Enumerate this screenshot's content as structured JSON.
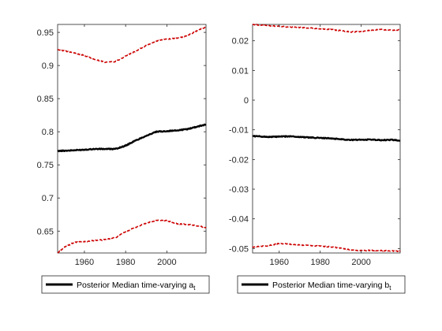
{
  "colors": {
    "median": "#000000",
    "bands": "#cc0000",
    "axis": "#262626",
    "background": "#ffffff"
  },
  "chart_data": [
    {
      "type": "line",
      "xlim": [
        1947,
        2019
      ],
      "ylim": [
        0.617,
        0.962
      ],
      "xticks": [
        1960,
        1980,
        2000
      ],
      "xtick_labels": [
        "1960",
        "1980",
        "2000"
      ],
      "yticks": [
        0.65,
        0.7,
        0.75,
        0.8,
        0.85,
        0.9,
        0.95
      ],
      "ytick_labels": [
        "0.65",
        "0.7",
        "0.75",
        "0.8",
        "0.85",
        "0.9",
        "0.95"
      ],
      "grid": false,
      "legend_position": "bottom",
      "legend": {
        "main": "Posterior Median time-varying a",
        "sub": "t"
      },
      "series": [
        {
          "style": "solid",
          "x": [
            1947,
            1955,
            1965,
            1975,
            1980,
            1985,
            1990,
            1995,
            2000,
            2005,
            2010,
            2015,
            2019
          ],
          "y": [
            0.771,
            0.772,
            0.774,
            0.774,
            0.779,
            0.787,
            0.794,
            0.8,
            0.801,
            0.802,
            0.804,
            0.808,
            0.811
          ]
        },
        {
          "style": "dashed",
          "x": [
            1947,
            1955,
            1960,
            1965,
            1970,
            1975,
            1980,
            1985,
            1990,
            1995,
            2000,
            2005,
            2010,
            2015,
            2019
          ],
          "y": [
            0.924,
            0.919,
            0.915,
            0.909,
            0.905,
            0.906,
            0.914,
            0.922,
            0.93,
            0.937,
            0.94,
            0.941,
            0.945,
            0.953,
            0.958
          ]
        },
        {
          "style": "dashed",
          "x": [
            1947,
            1950,
            1955,
            1960,
            1965,
            1970,
            1975,
            1980,
            1985,
            1990,
            1995,
            2000,
            2005,
            2010,
            2015,
            2019
          ],
          "y": [
            0.617,
            0.625,
            0.633,
            0.634,
            0.636,
            0.637,
            0.64,
            0.649,
            0.656,
            0.662,
            0.666,
            0.666,
            0.661,
            0.66,
            0.658,
            0.655
          ]
        }
      ]
    },
    {
      "type": "line",
      "xlim": [
        1947,
        2019
      ],
      "ylim": [
        -0.0515,
        0.0255
      ],
      "xticks": [
        1960,
        1980,
        2000
      ],
      "xtick_labels": [
        "1960",
        "1980",
        "2000"
      ],
      "yticks": [
        -0.05,
        -0.04,
        -0.03,
        -0.02,
        -0.01,
        0,
        0.01,
        0.02
      ],
      "ytick_labels": [
        "-0.05",
        "-0.04",
        "-0.03",
        "-0.02",
        "-0.01",
        "0",
        "0.01",
        "0.02"
      ],
      "grid": false,
      "legend_position": "bottom",
      "legend": {
        "main": "Posterior Median time-varying b",
        "sub": "t"
      },
      "series": [
        {
          "style": "solid",
          "x": [
            1947,
            1955,
            1965,
            1975,
            1985,
            1995,
            2005,
            2010,
            2015,
            2019
          ],
          "y": [
            -0.0121,
            -0.0124,
            -0.0122,
            -0.0126,
            -0.0129,
            -0.0134,
            -0.0133,
            -0.0135,
            -0.0134,
            -0.0136
          ]
        },
        {
          "style": "dashed",
          "x": [
            1947,
            1955,
            1965,
            1975,
            1985,
            1995,
            2000,
            2005,
            2010,
            2015,
            2019
          ],
          "y": [
            0.0255,
            0.0251,
            0.0246,
            0.0243,
            0.0238,
            0.023,
            0.0231,
            0.0236,
            0.0238,
            0.0236,
            0.0237
          ]
        },
        {
          "style": "dashed",
          "x": [
            1947,
            1950,
            1955,
            1960,
            1965,
            1970,
            1975,
            1980,
            1985,
            1990,
            1995,
            2000,
            2005,
            2010,
            2015,
            2019
          ],
          "y": [
            -0.0495,
            -0.0493,
            -0.049,
            -0.0483,
            -0.0485,
            -0.0488,
            -0.049,
            -0.0492,
            -0.0494,
            -0.0499,
            -0.0505,
            -0.0507,
            -0.0506,
            -0.0507,
            -0.0508,
            -0.0509
          ]
        }
      ]
    }
  ]
}
